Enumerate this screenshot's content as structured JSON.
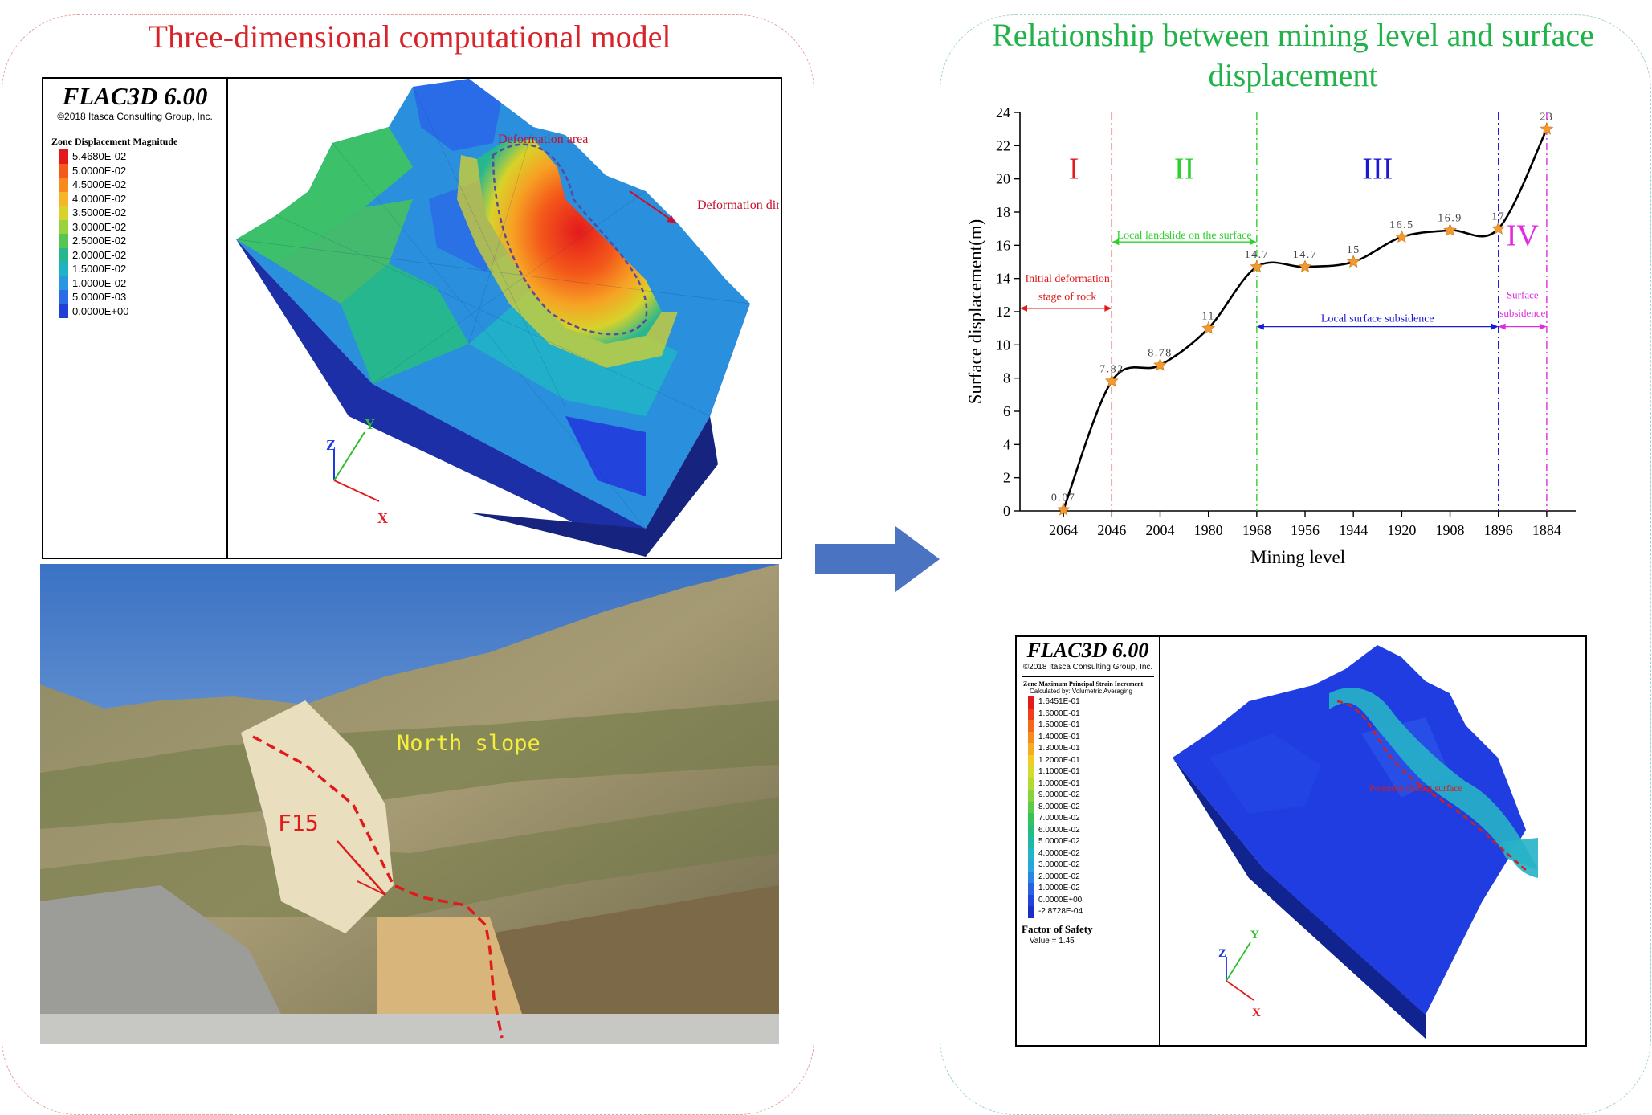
{
  "left_panel": {
    "title": "Three-dimensional computational model"
  },
  "right_panel": {
    "title_line1": "Relationship between mining level and surface",
    "title_line2": "displacement"
  },
  "top_model": {
    "software": "FLAC3D 6.00",
    "copyright": "©2018 Itasca Consulting Group, Inc.",
    "legend_title": "Zone Displacement Magnitude",
    "legend_items": [
      {
        "label": "5.4680E-02",
        "color": "#e31a1c"
      },
      {
        "label": "5.0000E-02",
        "color": "#f4581a"
      },
      {
        "label": "4.5000E-02",
        "color": "#f68a1f"
      },
      {
        "label": "4.0000E-02",
        "color": "#f6b427"
      },
      {
        "label": "3.5000E-02",
        "color": "#d8d22a"
      },
      {
        "label": "3.0000E-02",
        "color": "#9ad23c"
      },
      {
        "label": "2.5000E-02",
        "color": "#57c552"
      },
      {
        "label": "2.0000E-02",
        "color": "#27b78f"
      },
      {
        "label": "1.5000E-02",
        "color": "#21b2c6"
      },
      {
        "label": "1.0000E-02",
        "color": "#2a98e0"
      },
      {
        "label": "5.0000E-03",
        "color": "#2a6ce8"
      },
      {
        "label": "0.0000E+00",
        "color": "#1f3fd6"
      }
    ],
    "annotation_area": "Deformation area",
    "annotation_direction": "Deformation direction",
    "axes": {
      "x": "X",
      "y": "Y",
      "z": "Z"
    }
  },
  "photo": {
    "label_slope": "North slope",
    "label_fault": "F15"
  },
  "chart_data": {
    "type": "line",
    "xlabel": "Mining level",
    "ylabel": "Surface displacement(m)",
    "categories": [
      "2064",
      "2046",
      "2004",
      "1980",
      "1968",
      "1956",
      "1944",
      "1920",
      "1908",
      "1896",
      "1884"
    ],
    "series": [
      {
        "values": [
          0.07,
          7.82,
          8.78,
          11,
          14.7,
          14.7,
          15,
          16.5,
          16.9,
          17,
          23
        ]
      }
    ],
    "data_labels": [
      "0.07",
      "7.82",
      "8.78",
      "11",
      "14.7",
      "14.7",
      "15",
      "16.5",
      "16.9",
      "17",
      "23"
    ],
    "ylim": [
      0,
      24
    ],
    "yticks": [
      "0",
      "2",
      "4",
      "6",
      "8",
      "10",
      "12",
      "14",
      "16",
      "18",
      "20",
      "22",
      "24"
    ],
    "stages": [
      {
        "label": "I",
        "color": "#e31a1c"
      },
      {
        "label": "II",
        "color": "#2dd02d"
      },
      {
        "label": "III",
        "color": "#1a1ad6"
      },
      {
        "label": "IV",
        "color": "#e12be1"
      }
    ],
    "annotations": {
      "initial_line1": "Initial deformation",
      "initial_line2": "stage of rock",
      "local_landslide": "Local landslide on the surface",
      "local_subsidence": "Local surface subsidence",
      "surface_line1": "Surface",
      "surface_line2": "subsidence"
    },
    "grid": false
  },
  "bottom_model": {
    "software": "FLAC3D 6.00",
    "copyright": "©2018 Itasca Consulting Group, Inc.",
    "legend_title": "Zone Maximum Principal Strain Increment",
    "legend_subtitle": "Calculated by: Volumetric Averaging",
    "legend_items": [
      {
        "label": "1.6451E-01",
        "color": "#e31a1c"
      },
      {
        "label": "1.6000E-01",
        "color": "#ee3f1a"
      },
      {
        "label": "1.5000E-01",
        "color": "#f4661c"
      },
      {
        "label": "1.4000E-01",
        "color": "#f68a1f"
      },
      {
        "label": "1.3000E-01",
        "color": "#f6ad24"
      },
      {
        "label": "1.2000E-01",
        "color": "#f0cc27"
      },
      {
        "label": "1.1000E-01",
        "color": "#d5db2c"
      },
      {
        "label": "1.0000E-01",
        "color": "#b2d934"
      },
      {
        "label": "9.0000E-02",
        "color": "#86d23f"
      },
      {
        "label": "8.0000E-02",
        "color": "#5ccb48"
      },
      {
        "label": "7.0000E-02",
        "color": "#37c35c"
      },
      {
        "label": "6.0000E-02",
        "color": "#22bd7f"
      },
      {
        "label": "5.0000E-02",
        "color": "#1fb9a3"
      },
      {
        "label": "4.0000E-02",
        "color": "#21b5c6"
      },
      {
        "label": "3.0000E-02",
        "color": "#25a6dc"
      },
      {
        "label": "2.0000E-02",
        "color": "#2a86e4"
      },
      {
        "label": "1.0000E-02",
        "color": "#2a62e6"
      },
      {
        "label": "0.0000E+00",
        "color": "#2344dc"
      },
      {
        "label": "-2.8728E-04",
        "color": "#1b2fc4"
      }
    ],
    "factor_title": "Factor of Safety",
    "factor_value": "Value = 1.45",
    "annotation_surface": "Potential sliding surface",
    "axes": {
      "x": "X",
      "y": "Y",
      "z": "Z"
    }
  }
}
